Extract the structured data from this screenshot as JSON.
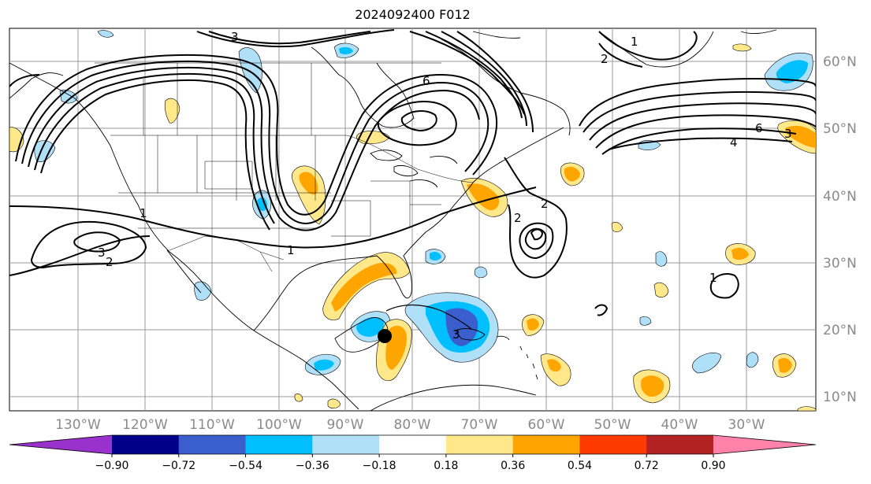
{
  "title": "2024092400 F012",
  "map": {
    "lon_labels": [
      "130°W",
      "120°W",
      "110°W",
      "100°W",
      "90°W",
      "80°W",
      "70°W",
      "60°W",
      "50°W",
      "40°W",
      "30°W"
    ],
    "lat_labels": [
      "60°N",
      "50°N",
      "40°N",
      "30°N",
      "20°N",
      "10°N"
    ],
    "contour_labels": [
      "3",
      "1",
      "6",
      "2",
      "2",
      "1",
      "3",
      "6",
      "4",
      "1",
      "3",
      "2",
      "1",
      "3",
      "2"
    ],
    "storm_marker": "storm-center"
  },
  "colorbar": {
    "labels": [
      "−0.90",
      "−0.72",
      "−0.54",
      "−0.36",
      "−0.18",
      "0.18",
      "0.36",
      "0.54",
      "0.72",
      "0.90"
    ],
    "colors": [
      "#9932cc",
      "#00008b",
      "#3a5fcd",
      "#00bfff",
      "#b0e0f8",
      "#ffffff",
      "#ffe88a",
      "#ffa500",
      "#ff3a00",
      "#b22222",
      "#ff82ab"
    ]
  }
}
